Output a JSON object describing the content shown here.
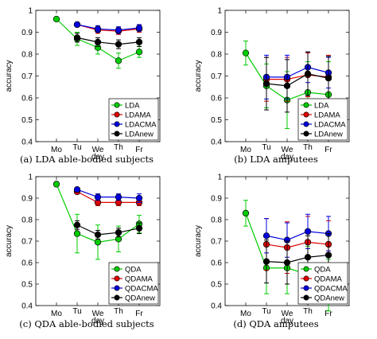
{
  "chart_data": [
    {
      "type": "line",
      "caption": "(a) LDA able-bodied subjects",
      "xlabel": "day",
      "ylabel": "accuracy",
      "categories": [
        "Mo",
        "Tu",
        "We",
        "Th",
        "Fr"
      ],
      "ylim": [
        0.4,
        1
      ],
      "yticks": [
        "0.4",
        "0.5",
        "0.6",
        "0.7",
        "0.8",
        "0.9",
        "1"
      ],
      "legend_position": "bottom-right",
      "series": [
        {
          "name": "LDA",
          "color": "#00cc00",
          "values": [
            0.96,
            0.87,
            0.83,
            0.77,
            0.81
          ],
          "errors": [
            0,
            0.03,
            0.03,
            0.035,
            0.025
          ]
        },
        {
          "name": "LDAMA",
          "color": "#e00000",
          "values": [
            null,
            0.935,
            0.91,
            0.905,
            0.915
          ],
          "errors": [
            0,
            0.01,
            0.015,
            0.015,
            0.015
          ]
        },
        {
          "name": "LDACMA",
          "color": "#0000e0",
          "values": [
            null,
            0.935,
            0.915,
            0.91,
            0.92
          ],
          "errors": [
            0,
            0.01,
            0.015,
            0.015,
            0.015
          ]
        },
        {
          "name": "LDAnew",
          "color": "#000000",
          "values": [
            null,
            0.875,
            0.855,
            0.845,
            0.855
          ],
          "errors": [
            0,
            0.02,
            0.02,
            0.02,
            0.02
          ]
        }
      ]
    },
    {
      "type": "line",
      "caption": "(b) LDA amputees",
      "xlabel": "day",
      "ylabel": "accuracy",
      "categories": [
        "Mo",
        "Tu",
        "We",
        "Th",
        "Fr"
      ],
      "ylim": [
        0.4,
        1
      ],
      "yticks": [
        "0.4",
        "0.5",
        "0.6",
        "0.7",
        "0.8",
        "0.9",
        "1"
      ],
      "legend_position": "bottom-right",
      "series": [
        {
          "name": "LDA",
          "color": "#00cc00",
          "values": [
            0.805,
            0.655,
            0.59,
            0.625,
            0.615
          ],
          "errors": [
            0.055,
            0.1,
            0.13,
            0.14,
            0.15
          ]
        },
        {
          "name": "LDAMA",
          "color": "#e00000",
          "values": [
            null,
            0.685,
            0.685,
            0.705,
            0.695
          ],
          "errors": [
            0,
            0.1,
            0.1,
            0.1,
            0.1
          ]
        },
        {
          "name": "LDACMA",
          "color": "#0000e0",
          "values": [
            null,
            0.695,
            0.695,
            0.74,
            0.715
          ],
          "errors": [
            0,
            0.1,
            0.1,
            0.07,
            0.07
          ]
        },
        {
          "name": "LDAnew",
          "color": "#000000",
          "values": [
            null,
            0.665,
            0.655,
            0.71,
            0.69
          ],
          "errors": [
            0,
            0.12,
            0.12,
            0.1,
            0.1
          ]
        }
      ]
    },
    {
      "type": "line",
      "caption": "(c) QDA able-bodied subjects",
      "xlabel": "day",
      "ylabel": "accuracy",
      "categories": [
        "Mo",
        "Tu",
        "We",
        "Th",
        "Fr"
      ],
      "ylim": [
        0.4,
        1
      ],
      "yticks": [
        "0.4",
        "0.5",
        "0.6",
        "0.7",
        "0.8",
        "0.9",
        "1"
      ],
      "legend_position": "bottom-right",
      "series": [
        {
          "name": "QDA",
          "color": "#00cc00",
          "values": [
            0.965,
            0.735,
            0.695,
            0.71,
            0.78
          ],
          "errors": [
            0,
            0.09,
            0.08,
            0.06,
            0.04
          ]
        },
        {
          "name": "QDAMA",
          "color": "#e00000",
          "values": [
            null,
            0.93,
            0.88,
            0.88,
            0.88
          ],
          "errors": [
            0,
            0.01,
            0.015,
            0.015,
            0.015
          ]
        },
        {
          "name": "QDACMA",
          "color": "#0000e0",
          "values": [
            null,
            0.94,
            0.905,
            0.905,
            0.9
          ],
          "errors": [
            0,
            0.01,
            0.015,
            0.015,
            0.02
          ]
        },
        {
          "name": "QDAnew",
          "color": "#000000",
          "values": [
            null,
            0.775,
            0.73,
            0.74,
            0.76
          ],
          "errors": [
            0,
            0.02,
            0.02,
            0.02,
            0.025
          ]
        }
      ]
    },
    {
      "type": "line",
      "caption": "(d) QDA amputees",
      "xlabel": "day",
      "ylabel": "accuracy",
      "categories": [
        "Mo",
        "Tu",
        "We",
        "Th",
        "Fr"
      ],
      "ylim": [
        0.4,
        1
      ],
      "yticks": [
        "0.4",
        "0.5",
        "0.6",
        "0.7",
        "0.8",
        "0.9",
        "1"
      ],
      "legend_position": "bottom-right",
      "series": [
        {
          "name": "QDA",
          "color": "#00cc00",
          "values": [
            0.83,
            0.575,
            0.575,
            0.545,
            0.495
          ],
          "errors": [
            0.06,
            0.12,
            0.12,
            0.13,
            0.12
          ]
        },
        {
          "name": "QDAMA",
          "color": "#e00000",
          "values": [
            null,
            0.685,
            0.67,
            0.695,
            0.685
          ],
          "errors": [
            0,
            0.12,
            0.12,
            0.12,
            0.11
          ]
        },
        {
          "name": "QDACMA",
          "color": "#0000e0",
          "values": [
            null,
            0.725,
            0.705,
            0.745,
            0.735
          ],
          "errors": [
            0,
            0.08,
            0.08,
            0.08,
            0.08
          ]
        },
        {
          "name": "QDAnew",
          "color": "#000000",
          "values": [
            null,
            0.605,
            0.6,
            0.625,
            0.635
          ],
          "errors": [
            0,
            0.1,
            0.1,
            0.1,
            0.1
          ]
        }
      ]
    }
  ]
}
